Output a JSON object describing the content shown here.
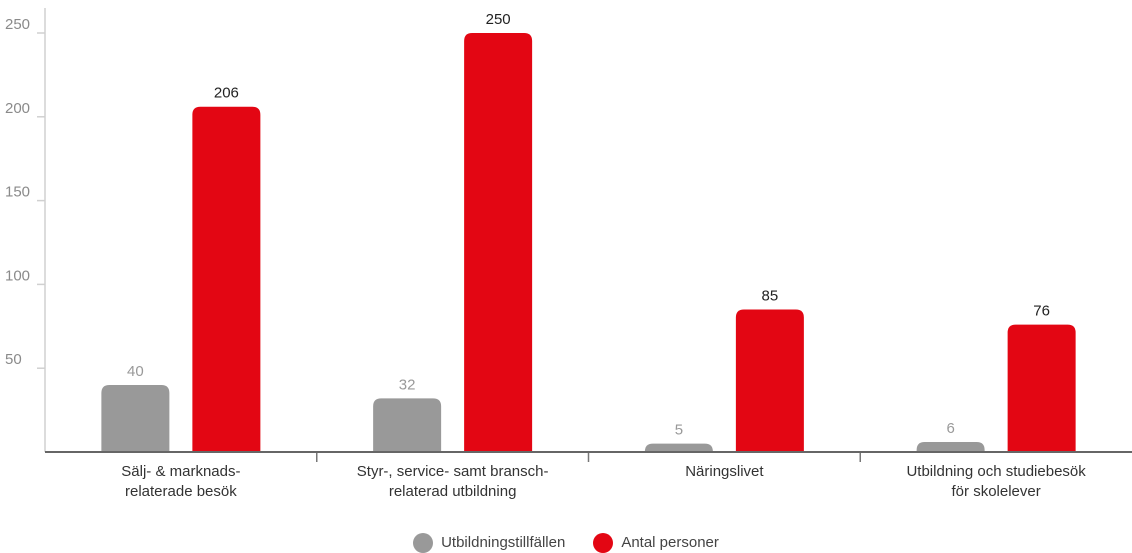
{
  "chart_data": {
    "type": "bar",
    "categories": [
      "Sälj- & marknads-\nrelaterade besök",
      "Styr-, service- samt bransch-\nrelaterad utbildning",
      "Näringslivet",
      "Utbildning och studiebesök\nför skolelever"
    ],
    "series": [
      {
        "name": "Utbildningstillfällen",
        "values": [
          40,
          32,
          5,
          6
        ],
        "color": "#999999"
      },
      {
        "name": "Antal personer",
        "values": [
          206,
          250,
          85,
          76
        ],
        "color": "#e30613"
      }
    ],
    "yticks": [
      50,
      100,
      150,
      200,
      250
    ],
    "ylim": [
      0,
      250
    ],
    "grid": false,
    "legend": "bottom-center",
    "title": ""
  }
}
